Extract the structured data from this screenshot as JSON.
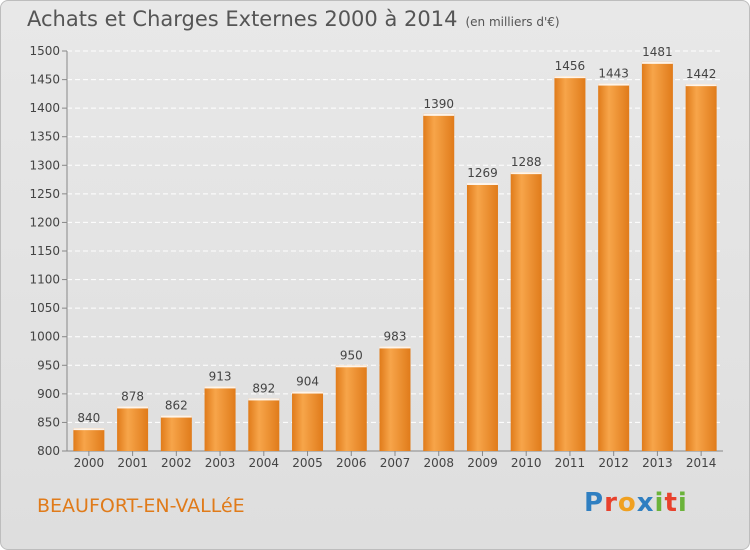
{
  "header": {
    "title": "Achats et Charges Externes 2000 à 2014",
    "unit": "(en milliers d'€)"
  },
  "footer": {
    "city": "BEAUFORT-EN-VALLéE",
    "logo": "Proxiti"
  },
  "colors": {
    "bar_light": "#f7a54a",
    "bar_dark": "#e07b1a",
    "city_text": "#e07b1a",
    "logo_letters": [
      "#2f7fc1",
      "#e8412c",
      "#f0a020",
      "#2f7fc1",
      "#6bb33a",
      "#e8412c",
      "#6bb33a"
    ]
  },
  "chart_data": {
    "type": "bar",
    "title": "Achats et Charges Externes 2000 à 2014",
    "xlabel": "",
    "ylabel": "",
    "categories": [
      "2000",
      "2001",
      "2002",
      "2003",
      "2004",
      "2005",
      "2006",
      "2007",
      "2008",
      "2009",
      "2010",
      "2011",
      "2012",
      "2013",
      "2014"
    ],
    "values": [
      840,
      878,
      862,
      913,
      892,
      904,
      950,
      983,
      1390,
      1269,
      1288,
      1456,
      1443,
      1481,
      1442
    ],
    "ylim": [
      800,
      1500
    ],
    "yticks": [
      800,
      850,
      900,
      950,
      1000,
      1050,
      1100,
      1150,
      1200,
      1250,
      1300,
      1350,
      1400,
      1450,
      1500
    ],
    "grid": true,
    "data_labels": true
  }
}
